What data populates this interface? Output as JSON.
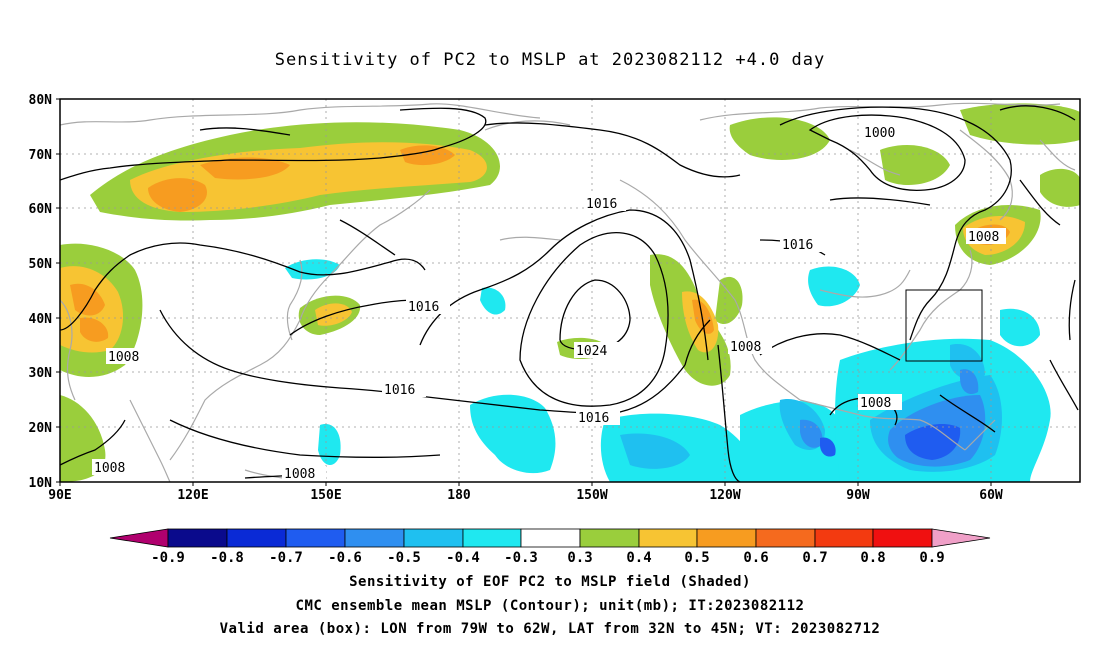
{
  "title": "Sensitivity of PC2 to MSLP at 2023082112 +4.0 day",
  "lat_labels": [
    "80N",
    "70N",
    "60N",
    "50N",
    "40N",
    "30N",
    "20N",
    "10N"
  ],
  "lon_labels": [
    "90E",
    "120E",
    "150E",
    "180",
    "150W",
    "120W",
    "90W",
    "60W"
  ],
  "contour_labels": {
    "c1000": "1000",
    "c1008_ne": "1008",
    "c1016_mid": "1016",
    "c1016_na": "1016",
    "c1016_wp": "1016",
    "c1016_a": "1016",
    "c1016_b": "1016",
    "c1024": "1024",
    "c1008_w": "1008",
    "c1008_sw": "1008",
    "c1008_s": "1008",
    "c1008_coast": "1008",
    "c1008_gulf": "1008"
  },
  "colorbar": {
    "labels": [
      "-0.9",
      "-0.8",
      "-0.7",
      "-0.6",
      "-0.5",
      "-0.4",
      "-0.3",
      "0.3",
      "0.4",
      "0.5",
      "0.6",
      "0.7",
      "0.8",
      "0.9"
    ],
    "colors": {
      "lt_m09": "#b0006e",
      "m09_m08": "#0a0a8c",
      "m08_m07": "#0a2ad6",
      "m07_m06": "#1f5cf0",
      "m06_m05": "#2f8ff0",
      "m05_m04": "#1fc0f0",
      "m04_m03": "#1fe8f0",
      "m03_p03": "#ffffff",
      "p03_p04": "#9ace3c",
      "p04_p05": "#f7c433",
      "p05_p06": "#f79c20",
      "p06_p07": "#f56a1e",
      "p07_p08": "#f33a10",
      "p08_p09": "#f01010",
      "gt_p09": "#f0a0c8"
    }
  },
  "captions": {
    "line1": "Sensitivity of EOF PC2 to MSLP field (Shaded)",
    "line2": "CMC ensemble mean MSLP (Contour); unit(mb); IT:2023082112",
    "line3": "Valid area (box): LON from 79W to 62W, LAT from 32N to 45N; VT: 2023082712"
  },
  "valid_box": {
    "lon_min_w": 79,
    "lon_max_w": 62,
    "lat_min_n": 32,
    "lat_max_n": 45
  }
}
